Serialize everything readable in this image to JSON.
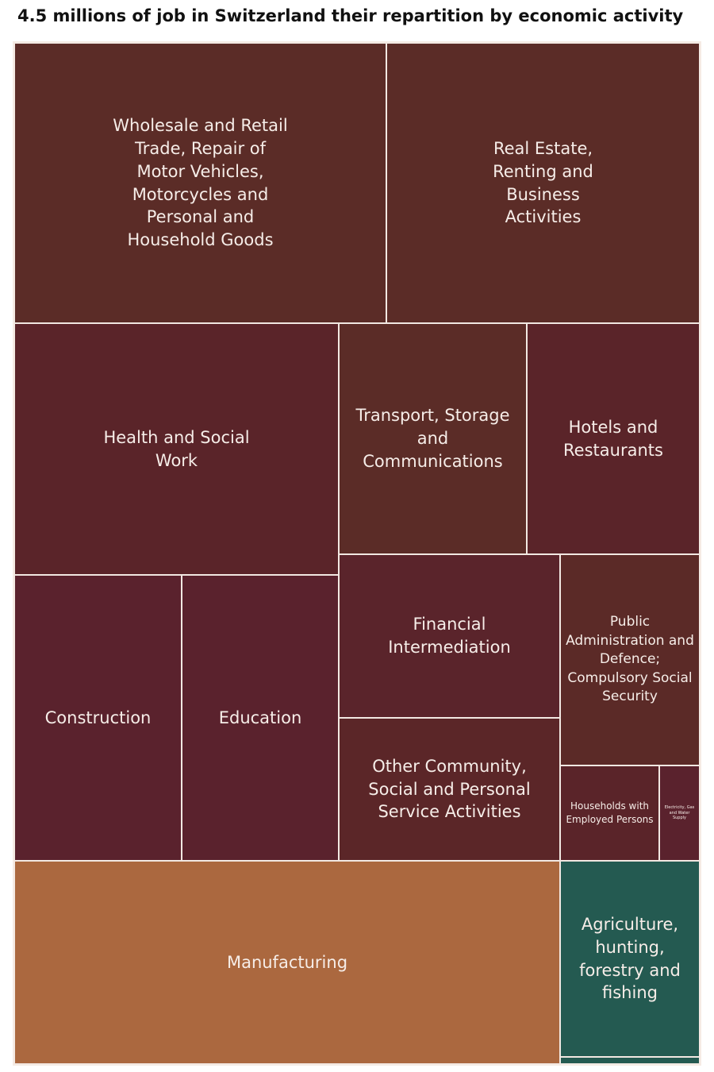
{
  "chart_data": {
    "type": "treemap",
    "title": "4.5 millions of job in Switzerland their repartition by economic activity",
    "value_scale": "relative share of jobs (estimated from tile areas)",
    "items": [
      {
        "label": "Wholesale and Retail Trade, Repair of Motor Vehicles, Motorcycles and Personal and Household Goods",
        "value": 15.2,
        "color": "#5b2c27"
      },
      {
        "label": "Real Estate, Renting and Business Activities",
        "value": 12.4,
        "color": "#5b2c27"
      },
      {
        "label": "Health and Social Work",
        "value": 11.6,
        "color": "#5a2429"
      },
      {
        "label": "Transport, Storage and Communications",
        "value": 6.2,
        "color": "#5b2c27"
      },
      {
        "label": "Hotels and Restaurants",
        "value": 5.7,
        "color": "#5a2429"
      },
      {
        "label": "Construction",
        "value": 6.8,
        "color": "#5a222d"
      },
      {
        "label": "Education",
        "value": 6.3,
        "color": "#5a222d"
      },
      {
        "label": "Financial Intermediation",
        "value": 5.1,
        "color": "#5a242b"
      },
      {
        "label": "Other Community, Social and Personal Service Activities",
        "value": 4.6,
        "color": "#5b2628"
      },
      {
        "label": "Public Administration and Defence; Compulsory Social Security",
        "value": 4.2,
        "color": "#5b2a27"
      },
      {
        "label": "Households with Employed Persons",
        "value": 1.3,
        "color": "#5a2429"
      },
      {
        "label": "Electricity, Gas and Water Supply",
        "value": 0.6,
        "color": "#5a222d"
      },
      {
        "label": "Manufacturing",
        "value": 15.8,
        "color": "#ab683f"
      },
      {
        "label": "Agriculture, hunting, forestry and fishing",
        "value": 3.7,
        "color": "#245a51"
      },
      {
        "label": "",
        "value": 0.1,
        "color": "#245a51"
      }
    ]
  }
}
